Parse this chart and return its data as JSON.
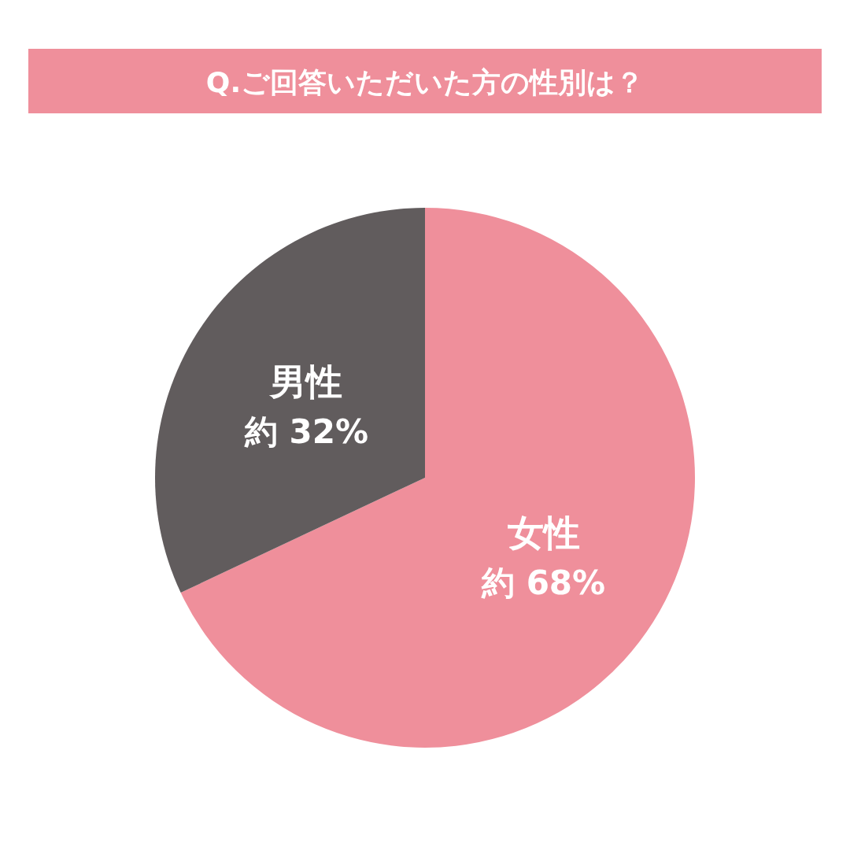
{
  "chart_data": {
    "type": "pie",
    "title": "Q.ご回答いただいた方の性別は？",
    "categories": [
      "女性",
      "男性"
    ],
    "values": [
      68,
      32
    ],
    "colors": [
      "#ef8f9b",
      "#615c5d"
    ],
    "value_labels": [
      "約 68%",
      "約 32%"
    ]
  }
}
